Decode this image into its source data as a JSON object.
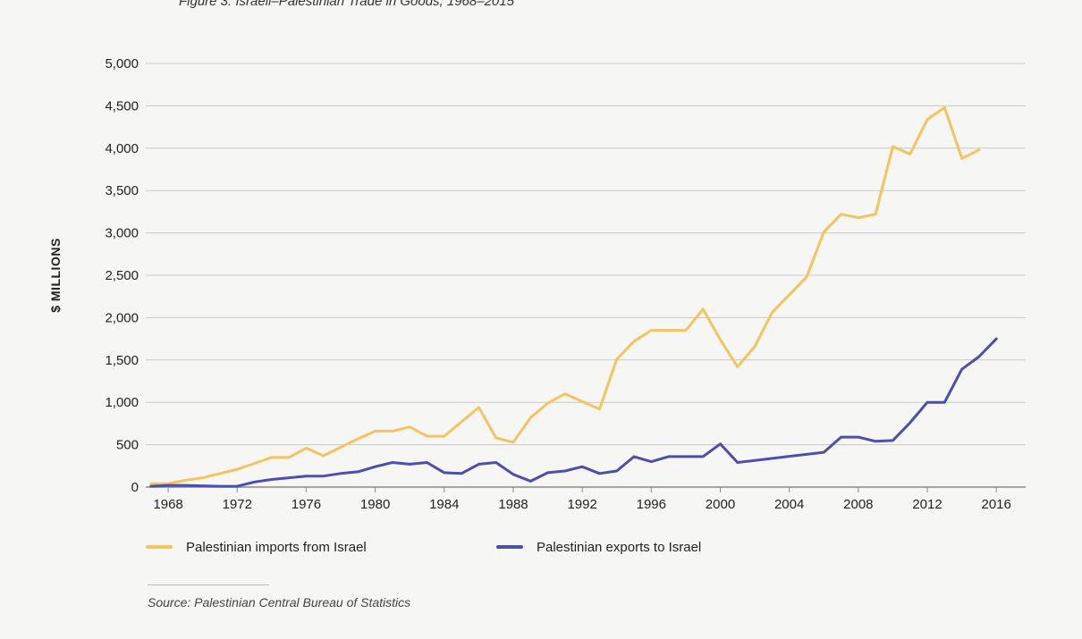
{
  "chart_data": {
    "type": "line",
    "title": "Figure 3: Israeli–Palestinian Trade in Goods, 1968–2015",
    "ylabel": "$ MILLIONS",
    "xlabel": "",
    "ylim": [
      0,
      5000
    ],
    "xlim": [
      1966.7,
      2017.7
    ],
    "yticks": [
      0,
      500,
      1000,
      1500,
      2000,
      2500,
      3000,
      3500,
      4000,
      4500,
      5000
    ],
    "ytick_labels": [
      "0",
      "500",
      "1,000",
      "1,500",
      "2,000",
      "2,500",
      "3,000",
      "3,500",
      "4,000",
      "4,500",
      "5,000"
    ],
    "xticks": [
      1968,
      1972,
      1976,
      1980,
      1984,
      1988,
      1992,
      1996,
      2000,
      2004,
      2008,
      2012,
      2016
    ],
    "xtick_labels": [
      "1968",
      "1972",
      "1976",
      "1980",
      "1984",
      "1988",
      "1992",
      "1996",
      "2000",
      "2004",
      "2008",
      "2012",
      "2016"
    ],
    "grid": "horizontal",
    "legend_position": "bottom",
    "series": [
      {
        "name": "Palestinian imports from Israel",
        "color": "#f5c45e",
        "points": [
          [
            1967,
            40
          ],
          [
            1968,
            40
          ],
          [
            1969,
            80
          ],
          [
            1970,
            110
          ],
          [
            1971,
            160
          ],
          [
            1972,
            210
          ],
          [
            1973,
            280
          ],
          [
            1974,
            350
          ],
          [
            1975,
            350
          ],
          [
            1976,
            460
          ],
          [
            1977,
            370
          ],
          [
            1978,
            470
          ],
          [
            1979,
            570
          ],
          [
            1980,
            660
          ],
          [
            1981,
            660
          ],
          [
            1982,
            710
          ],
          [
            1983,
            600
          ],
          [
            1984,
            600
          ],
          [
            1985,
            770
          ],
          [
            1986,
            940
          ],
          [
            1987,
            580
          ],
          [
            1988,
            530
          ],
          [
            1989,
            820
          ],
          [
            1990,
            990
          ],
          [
            1991,
            1100
          ],
          [
            1992,
            1010
          ],
          [
            1993,
            920
          ],
          [
            1994,
            1510
          ],
          [
            1995,
            1720
          ],
          [
            1996,
            1850
          ],
          [
            1997,
            1850
          ],
          [
            1998,
            1850
          ],
          [
            1999,
            2100
          ],
          [
            2000,
            1740
          ],
          [
            2001,
            1420
          ],
          [
            2002,
            1660
          ],
          [
            2003,
            2060
          ],
          [
            2004,
            2270
          ],
          [
            2005,
            2480
          ],
          [
            2006,
            3010
          ],
          [
            2007,
            3220
          ],
          [
            2008,
            3180
          ],
          [
            2009,
            3220
          ],
          [
            2010,
            4020
          ],
          [
            2011,
            3930
          ],
          [
            2012,
            4340
          ],
          [
            2013,
            4480
          ],
          [
            2014,
            3880
          ],
          [
            2015,
            3980
          ]
        ]
      },
      {
        "name": "Palestinian exports to Israel",
        "color": "#4b4fae",
        "points": [
          [
            1967,
            10
          ],
          [
            1968,
            20
          ],
          [
            1969,
            20
          ],
          [
            1970,
            15
          ],
          [
            1971,
            10
          ],
          [
            1972,
            10
          ],
          [
            1973,
            60
          ],
          [
            1974,
            90
          ],
          [
            1975,
            110
          ],
          [
            1976,
            130
          ],
          [
            1977,
            130
          ],
          [
            1978,
            160
          ],
          [
            1979,
            180
          ],
          [
            1980,
            240
          ],
          [
            1981,
            290
          ],
          [
            1982,
            270
          ],
          [
            1983,
            290
          ],
          [
            1984,
            170
          ],
          [
            1985,
            160
          ],
          [
            1986,
            270
          ],
          [
            1987,
            290
          ],
          [
            1988,
            150
          ],
          [
            1989,
            70
          ],
          [
            1990,
            170
          ],
          [
            1991,
            190
          ],
          [
            1992,
            240
          ],
          [
            1993,
            160
          ],
          [
            1994,
            190
          ],
          [
            1995,
            360
          ],
          [
            1996,
            300
          ],
          [
            1997,
            360
          ],
          [
            1998,
            360
          ],
          [
            1999,
            360
          ],
          [
            2000,
            510
          ],
          [
            2001,
            290
          ],
          [
            2006,
            410
          ],
          [
            2007,
            590
          ],
          [
            2008,
            590
          ],
          [
            2009,
            540
          ],
          [
            2010,
            550
          ],
          [
            2011,
            760
          ],
          [
            2012,
            1000
          ],
          [
            2013,
            1000
          ],
          [
            2014,
            1390
          ],
          [
            2015,
            1540
          ],
          [
            2016,
            1750
          ]
        ]
      }
    ],
    "source": "Source: Palestinian Central Bureau of Statistics"
  }
}
